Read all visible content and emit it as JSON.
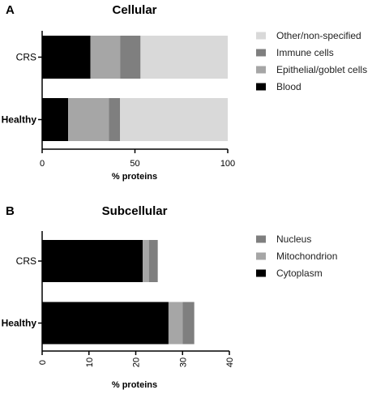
{
  "chart_data": [
    {
      "panel": "A",
      "type": "bar",
      "orientation": "horizontal",
      "stacked": true,
      "title": "Cellular",
      "xlabel": "% proteins",
      "ylabel": "",
      "xlim": [
        0,
        100
      ],
      "xticks": [
        0,
        50,
        100
      ],
      "categories": [
        "CRS",
        "Healthy"
      ],
      "category_bold": [
        false,
        true
      ],
      "series": [
        {
          "name": "Blood",
          "color": "#000000",
          "values": [
            26,
            14
          ]
        },
        {
          "name": "Epithelial/goblet cells",
          "color": "#a6a6a6",
          "values": [
            16,
            22
          ]
        },
        {
          "name": "Immune cells",
          "color": "#7f7f7f",
          "values": [
            11,
            6
          ]
        },
        {
          "name": "Other/non-specified",
          "color": "#d9d9d9",
          "values": [
            47,
            58
          ]
        }
      ],
      "legend": {
        "position": "right",
        "order": [
          "Other/non-specified",
          "Immune cells",
          "Epithelial/goblet cells",
          "Blood"
        ]
      },
      "grid": false
    },
    {
      "panel": "B",
      "type": "bar",
      "orientation": "horizontal",
      "stacked": true,
      "title": "Subcellular",
      "xlabel": "% proteins",
      "ylabel": "",
      "xlim": [
        0,
        40
      ],
      "xticks": [
        0,
        10,
        20,
        30,
        40
      ],
      "xtick_rotation": -90,
      "categories": [
        "CRS",
        "Healthy"
      ],
      "category_bold": [
        false,
        true
      ],
      "series": [
        {
          "name": "Cytoplasm",
          "color": "#000000",
          "values": [
            21.5,
            27
          ]
        },
        {
          "name": "Mitochondrion",
          "color": "#a6a6a6",
          "values": [
            1.3,
            3
          ]
        },
        {
          "name": "Nucleus",
          "color": "#7f7f7f",
          "values": [
            1.9,
            2.5
          ]
        }
      ],
      "legend": {
        "position": "right",
        "order": [
          "Nucleus",
          "Mitochondrion",
          "Cytoplasm"
        ]
      },
      "grid": false
    }
  ]
}
